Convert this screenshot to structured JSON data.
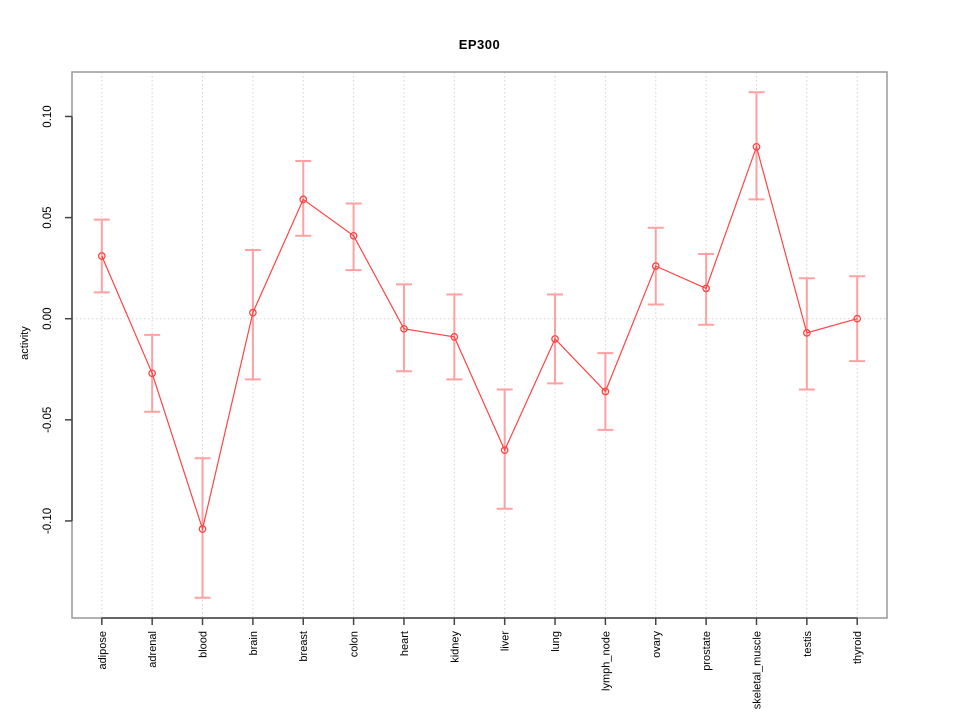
{
  "chart_data": {
    "type": "line",
    "title": "EP300",
    "xlabel": "",
    "ylabel": "activity",
    "categories": [
      "adipose",
      "adrenal",
      "blood",
      "brain",
      "breast",
      "colon",
      "heart",
      "kidney",
      "liver",
      "lung",
      "lymph_node",
      "ovary",
      "prostate",
      "skeletal_muscle",
      "testis",
      "thyroid"
    ],
    "series": [
      {
        "name": "activity",
        "values": [
          0.031,
          -0.027,
          -0.104,
          0.003,
          0.059,
          0.041,
          -0.005,
          -0.009,
          -0.065,
          -0.01,
          -0.036,
          0.026,
          0.015,
          0.085,
          -0.007,
          0.0
        ],
        "error_high": [
          0.049,
          -0.008,
          -0.069,
          0.034,
          0.078,
          0.057,
          0.017,
          0.012,
          -0.035,
          0.012,
          -0.017,
          0.045,
          0.032,
          0.112,
          0.02,
          0.021
        ],
        "error_low": [
          0.013,
          -0.046,
          -0.138,
          -0.03,
          0.041,
          0.024,
          -0.026,
          -0.03,
          -0.094,
          -0.032,
          -0.055,
          0.007,
          -0.003,
          0.059,
          -0.035,
          -0.021
        ]
      }
    ],
    "ytick_labels": [
      "0.10",
      "0.05",
      "0.00",
      "-0.05",
      "-0.10"
    ],
    "ytick_values": [
      0.1,
      0.05,
      0.0,
      -0.05,
      -0.1
    ],
    "ylim": [
      -0.148,
      0.122
    ],
    "grid": {
      "vertical": "dotted-per-category",
      "horizontal_zero_line": true
    },
    "legend": "none",
    "marker": "open-circle",
    "colors": {
      "line": "#ff4444",
      "marker": "#ff4444",
      "error_bar": "#ffa1a1",
      "grid": "#d4d4d4",
      "box": "#999999",
      "axis": "#444444",
      "text": "#000000"
    }
  }
}
